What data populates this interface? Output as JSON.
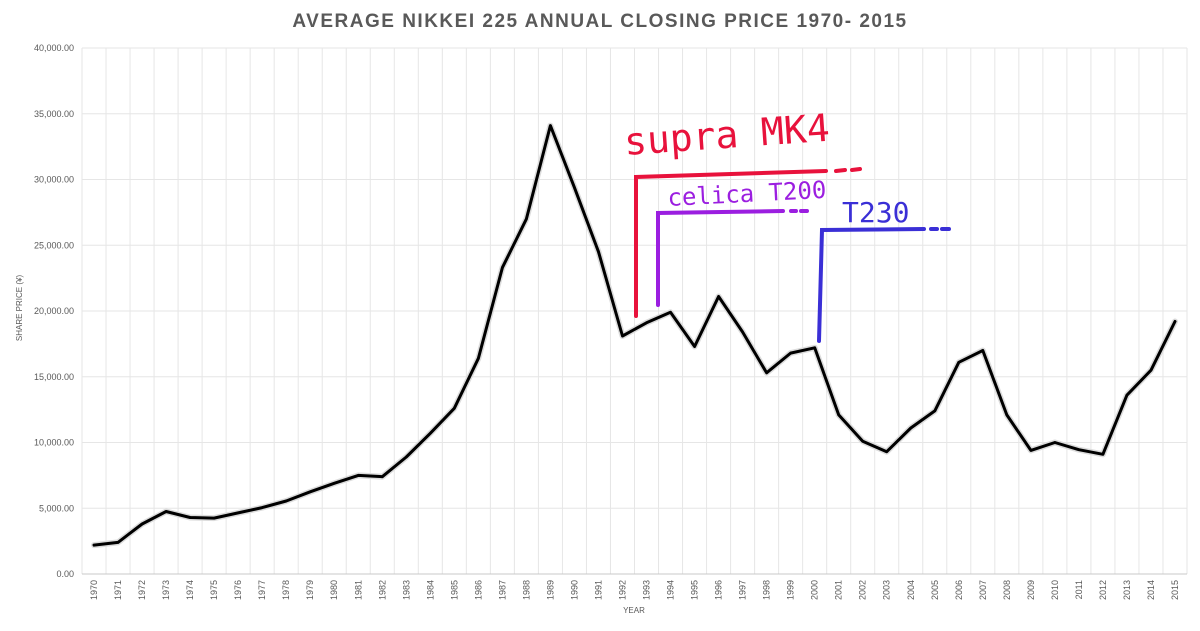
{
  "chart_data": {
    "type": "line",
    "title": "AVERAGE NIKKEI 225 ANNUAL CLOSING PRICE 1970- 2015",
    "xlabel": "YEAR",
    "ylabel": "SHARE PRICE (¥)",
    "ylim": [
      0,
      40000
    ],
    "yticks": [
      "0.00",
      "5,000.00",
      "10,000.00",
      "15,000.00",
      "20,000.00",
      "25,000.00",
      "30,000.00",
      "35,000.00",
      "40,000.00"
    ],
    "grid": true,
    "colors": {
      "line": "#000000",
      "grid": "#e6e6e6"
    },
    "series": [
      {
        "name": "Nikkei 225",
        "x": [
          "1970",
          "1971",
          "1972",
          "1973",
          "1974",
          "1975",
          "1976",
          "1977",
          "1978",
          "1979",
          "1980",
          "1981",
          "1982",
          "1983",
          "1984",
          "1985",
          "1986",
          "1987",
          "1988",
          "1989",
          "1990",
          "1991",
          "1992",
          "1993",
          "1994",
          "1995",
          "1996",
          "1997",
          "1998",
          "1999",
          "2000",
          "2001",
          "2002",
          "2003",
          "2004",
          "2005",
          "2006",
          "2007",
          "2008",
          "2009",
          "2010",
          "2011",
          "2012",
          "2013",
          "2014",
          "2015"
        ],
        "values": [
          2200,
          2400,
          3800,
          4750,
          4300,
          4250,
          4650,
          5050,
          5550,
          6250,
          6900,
          7500,
          7400,
          8900,
          10700,
          12600,
          16400,
          23300,
          27000,
          34100,
          29400,
          24500,
          18100,
          19100,
          19900,
          17300,
          21100,
          18400,
          15300,
          16800,
          17200,
          12100,
          10100,
          9300,
          11100,
          12400,
          16100,
          17000,
          12100,
          9400,
          10000,
          9450,
          9100,
          13600,
          15500,
          19200
        ]
      }
    ],
    "annotations": {
      "supra": {
        "text": "supra MK4",
        "color": "#e8123c"
      },
      "celica": {
        "text": "celica T200",
        "color": "#9b1ee0"
      },
      "t230": {
        "text": "T230",
        "color": "#3a2fd6"
      }
    }
  }
}
